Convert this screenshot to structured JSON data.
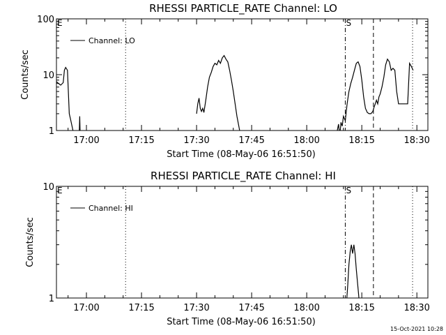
{
  "footer": {
    "timestamp": "15-Oct-2021 10:28"
  },
  "chart_data": [
    {
      "type": "line",
      "title": "RHESSI PARTICLE_RATE Channel: LO",
      "xlabel": "Start Time (08-May-06 16:51:50)",
      "ylabel": "Counts/sec",
      "yscale": "log",
      "ylim": [
        1,
        100
      ],
      "yticks": [
        1,
        10,
        100
      ],
      "ytick_labels": [
        "1",
        "10",
        "100"
      ],
      "xlim": [
        "16:51:50",
        "18:33:00"
      ],
      "xticks": [
        "17:00",
        "17:15",
        "17:30",
        "17:45",
        "18:00",
        "18:15",
        "18:30"
      ],
      "legend": {
        "label": "Channel: LO",
        "position": "top-left"
      },
      "markers": [
        {
          "label": "E",
          "time": "16:51:50",
          "style": "edge"
        },
        {
          "label": "",
          "time": "17:10:40",
          "style": "dotted"
        },
        {
          "label": "S",
          "time": "18:10:30",
          "style": "dash-dot"
        },
        {
          "label": "",
          "time": "18:18:10",
          "style": "dashed"
        },
        {
          "label": "",
          "time": "18:28:50",
          "style": "dotted"
        }
      ],
      "segments": [
        [
          [
            "16:51:50",
            7.5
          ],
          [
            "16:52:20",
            7
          ],
          [
            "16:53:00",
            6.5
          ],
          [
            "16:53:40",
            7.2
          ],
          [
            "16:54:00",
            12
          ],
          [
            "16:54:20",
            13.5
          ],
          [
            "16:54:50",
            12
          ],
          [
            "16:55:20",
            2
          ],
          [
            "16:55:40",
            1.6
          ],
          [
            "16:56:20",
            1
          ],
          [
            "16:56:40",
            0.7
          ]
        ],
        [
          [
            "16:58:00",
            0.7
          ],
          [
            "16:58:10",
            1.8
          ],
          [
            "16:58:20",
            0.7
          ]
        ],
        [
          [
            "17:30:00",
            2
          ],
          [
            "17:30:20",
            3
          ],
          [
            "17:30:40",
            3.8
          ],
          [
            "17:31:00",
            2.5
          ],
          [
            "17:31:20",
            2.2
          ],
          [
            "17:31:40",
            2.5
          ],
          [
            "17:32:00",
            2.1
          ],
          [
            "17:32:30",
            3.5
          ],
          [
            "17:33:00",
            6
          ],
          [
            "17:33:30",
            9
          ],
          [
            "17:34:00",
            11
          ],
          [
            "17:34:30",
            14
          ],
          [
            "17:35:00",
            16
          ],
          [
            "17:35:30",
            15
          ],
          [
            "17:36:00",
            18
          ],
          [
            "17:36:30",
            16
          ],
          [
            "17:37:00",
            20
          ],
          [
            "17:37:30",
            22
          ],
          [
            "17:38:00",
            19
          ],
          [
            "17:38:30",
            17
          ],
          [
            "17:39:00",
            12
          ],
          [
            "17:39:30",
            8
          ],
          [
            "17:40:00",
            5
          ],
          [
            "17:40:30",
            3
          ],
          [
            "17:41:00",
            1.8
          ],
          [
            "17:41:30",
            1.2
          ],
          [
            "17:42:00",
            0.8
          ]
        ],
        [
          [
            "18:08:00",
            0.7
          ],
          [
            "18:08:20",
            1
          ],
          [
            "18:08:40",
            1.3
          ],
          [
            "18:09:00",
            0.8
          ],
          [
            "18:09:20",
            1.4
          ],
          [
            "18:09:40",
            1.2
          ],
          [
            "18:10:00",
            1.8
          ],
          [
            "18:10:30",
            1.5
          ],
          [
            "18:11:00",
            3
          ],
          [
            "18:11:30",
            5
          ],
          [
            "18:12:00",
            7
          ],
          [
            "18:12:30",
            9
          ],
          [
            "18:13:00",
            12
          ],
          [
            "18:13:30",
            16
          ],
          [
            "18:14:00",
            17
          ],
          [
            "18:14:30",
            14
          ],
          [
            "18:15:00",
            8
          ],
          [
            "18:15:30",
            4
          ],
          [
            "18:16:00",
            2.5
          ],
          [
            "18:16:30",
            2.1
          ],
          [
            "18:17:00",
            2
          ],
          [
            "18:17:30",
            2
          ],
          [
            "18:18:00",
            2.2
          ],
          [
            "18:18:20",
            2.6
          ],
          [
            "18:18:40",
            3
          ],
          [
            "18:19:00",
            3.5
          ],
          [
            "18:19:20",
            3
          ],
          [
            "18:19:40",
            4
          ],
          [
            "18:20:00",
            4.5
          ],
          [
            "18:20:30",
            6
          ],
          [
            "18:21:00",
            9
          ],
          [
            "18:21:30",
            15
          ],
          [
            "18:22:00",
            19
          ],
          [
            "18:22:30",
            17
          ],
          [
            "18:23:00",
            12
          ],
          [
            "18:23:30",
            13
          ],
          [
            "18:24:00",
            12
          ],
          [
            "18:24:30",
            5
          ],
          [
            "18:25:00",
            3
          ],
          [
            "18:26:00",
            3
          ],
          [
            "18:27:00",
            3
          ],
          [
            "18:27:30",
            3
          ],
          [
            "18:28:00",
            16
          ],
          [
            "18:28:30",
            14
          ],
          [
            "18:29:00",
            12
          ]
        ]
      ]
    },
    {
      "type": "line",
      "title": "RHESSI PARTICLE_RATE Channel: HI",
      "xlabel": "Start Time (08-May-06 16:51:50)",
      "ylabel": "Counts/sec",
      "yscale": "log",
      "ylim": [
        1,
        10
      ],
      "yticks": [
        1,
        10
      ],
      "ytick_labels": [
        "1",
        "10"
      ],
      "xlim": [
        "16:51:50",
        "18:33:00"
      ],
      "xticks": [
        "17:00",
        "17:15",
        "17:30",
        "17:45",
        "18:00",
        "18:15",
        "18:30"
      ],
      "legend": {
        "label": "Channel: HI",
        "position": "top-left"
      },
      "markers": [
        {
          "label": "E",
          "time": "16:51:50",
          "style": "edge"
        },
        {
          "label": "",
          "time": "17:10:40",
          "style": "dotted"
        },
        {
          "label": "S",
          "time": "18:10:30",
          "style": "dash-dot"
        },
        {
          "label": "",
          "time": "18:18:10",
          "style": "dashed"
        },
        {
          "label": "",
          "time": "18:28:50",
          "style": "dotted"
        }
      ],
      "segments": [
        [
          [
            "18:10:50",
            0.9
          ],
          [
            "18:11:10",
            1.3
          ],
          [
            "18:11:30",
            2
          ],
          [
            "18:11:50",
            2.6
          ],
          [
            "18:12:10",
            3
          ],
          [
            "18:12:30",
            2.5
          ],
          [
            "18:12:50",
            3
          ],
          [
            "18:13:10",
            2.5
          ],
          [
            "18:13:30",
            1.8
          ],
          [
            "18:14:00",
            1.2
          ],
          [
            "18:14:20",
            0.9
          ]
        ]
      ]
    }
  ]
}
